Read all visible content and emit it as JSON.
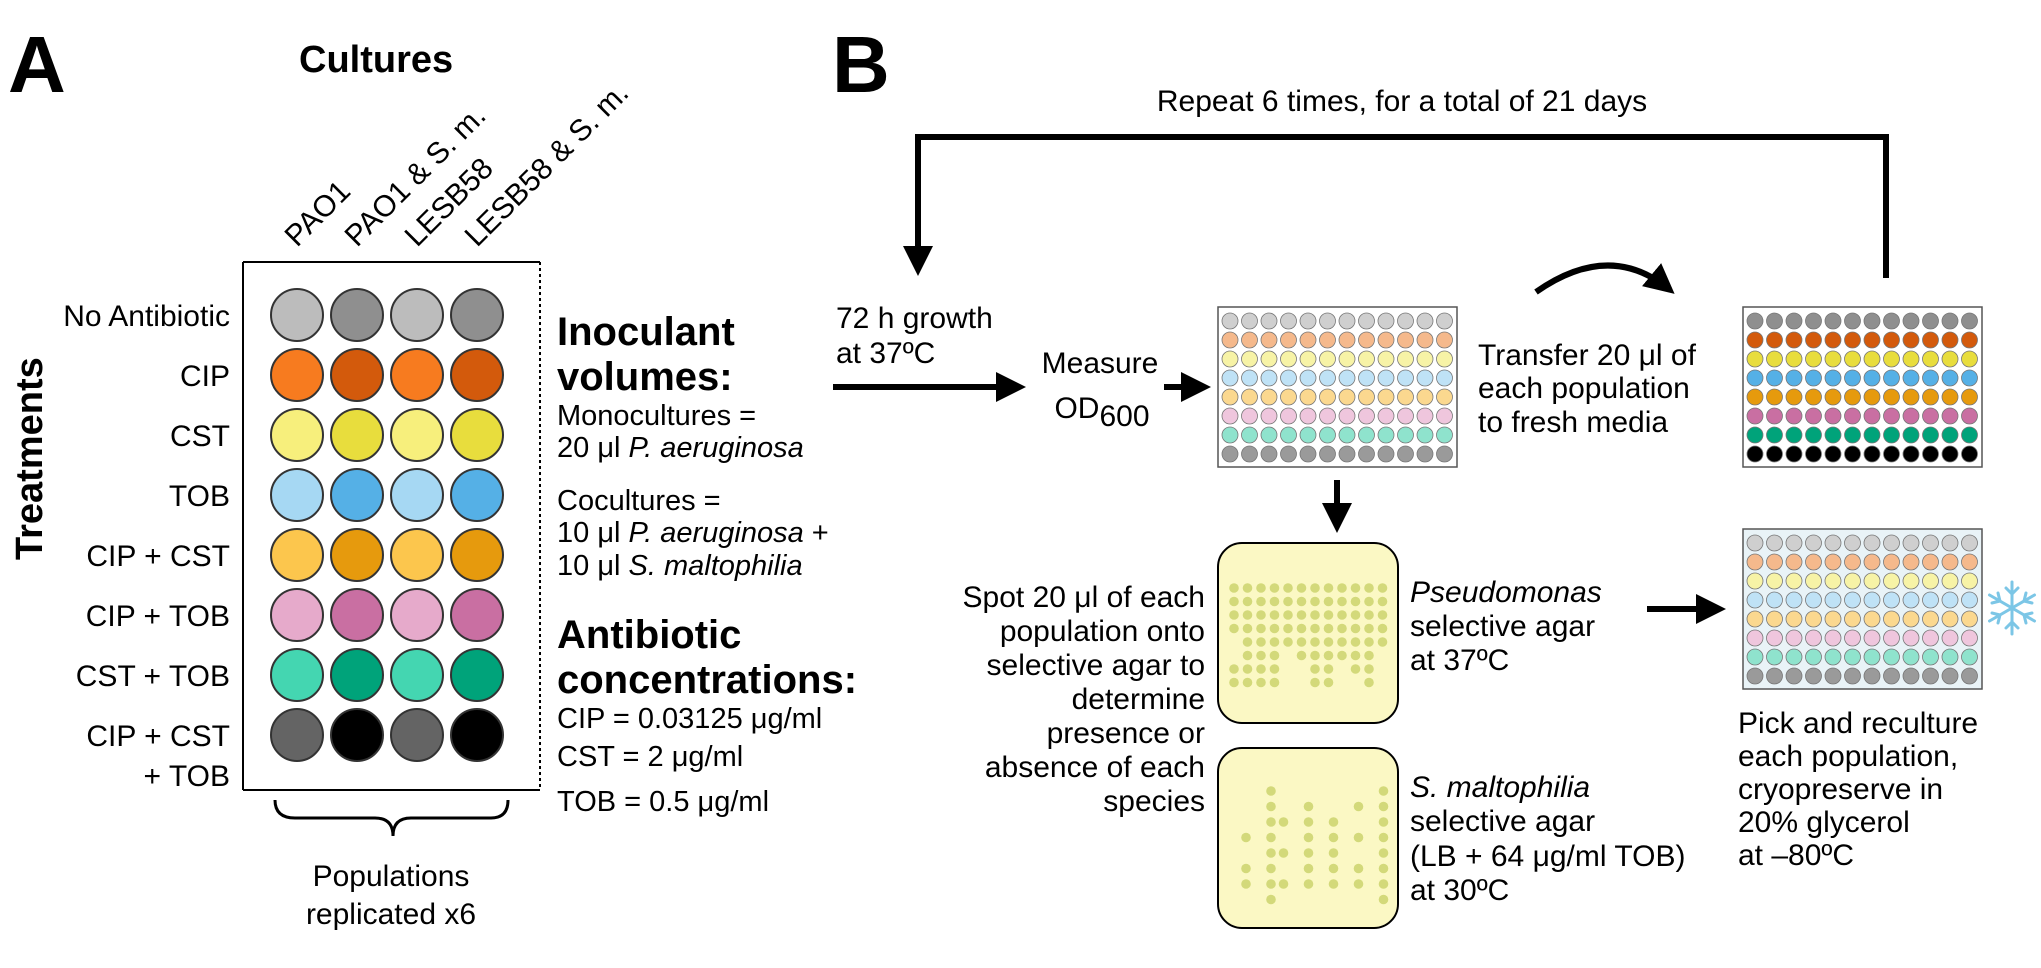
{
  "panel_a": {
    "letter": "A",
    "cultures_title": "Cultures",
    "treatments_title": "Treatments",
    "columns": [
      "PAO1",
      "PAO1 & S. m.",
      "LESB58",
      "LESB58 & S. m."
    ],
    "rows": [
      {
        "label": "No Antibiotic",
        "colors": [
          "#bcbcbc",
          "#8f8f8f",
          "#bcbcbc",
          "#8f8f8f"
        ]
      },
      {
        "label": "CIP",
        "colors": [
          "#f77b1f",
          "#d35a0c",
          "#f77b1f",
          "#d35a0c"
        ]
      },
      {
        "label": "CST",
        "colors": [
          "#f7ef7c",
          "#e8dd3d",
          "#f7ef7c",
          "#e8dd3d"
        ]
      },
      {
        "label": "TOB",
        "colors": [
          "#a6d8f3",
          "#55b0e6",
          "#a6d8f3",
          "#55b0e6"
        ]
      },
      {
        "label": "CIP + CST",
        "colors": [
          "#fcc64d",
          "#e69a0d",
          "#fcc64d",
          "#e69a0d"
        ]
      },
      {
        "label": "CIP + TOB",
        "colors": [
          "#e6aacb",
          "#c96fa2",
          "#e6aacb",
          "#c96fa2"
        ]
      },
      {
        "label": "CST + TOB",
        "colors": [
          "#44d6b1",
          "#00a37a",
          "#44d6b1",
          "#00a37a"
        ]
      },
      {
        "label_line1": "CIP + CST",
        "label_line2": "+ TOB",
        "colors": [
          "#646464",
          "#000000",
          "#646464",
          "#000000"
        ]
      }
    ],
    "populations_line1": "Populations",
    "populations_line2": "replicated x6"
  },
  "inoculant": {
    "title_line1": "Inoculant",
    "title_line2": "volumes:",
    "mono_line1": "Monocultures =",
    "mono_line2_num": "20 μl ",
    "mono_line2_species": "P. aeruginosa",
    "co_line1": "Cocultures =",
    "co_line2_num": "10 μl ",
    "co_line2_species": "P. aeruginosa",
    "co_line2_tail": " +",
    "co_line3_num": "10 μl ",
    "co_line3_species": "S. maltophilia"
  },
  "antibiotic": {
    "title_line1": "Antibiotic",
    "title_line2": "concentrations:",
    "lines": [
      "CIP = 0.03125 μg/ml",
      "CST = 2 μg/ml",
      "TOB = 0.5 μg/ml"
    ]
  },
  "panel_b": {
    "letter": "B",
    "repeat_text": "Repeat 6 times, for a total of 21 days",
    "growth_line1": "72 h growth",
    "growth_line2": "at 37ºC",
    "measure_line1": "Measure",
    "measure_od": "OD",
    "measure_sub": "600",
    "transfer_lines": [
      "Transfer 20 μl of",
      "each population",
      "to fresh media"
    ],
    "spot_lines": [
      "Spot 20 μl of each",
      "population onto",
      "selective agar to",
      "determine",
      "presence or",
      "absence of each",
      "species"
    ],
    "pseudo_name": "Pseudomonas",
    "pseudo_lines": [
      "selective agar",
      "at 37ºC"
    ],
    "steno_name": "S. maltophilia",
    "steno_lines": [
      "selective agar",
      "(LB + 64 μg/ml TOB)",
      "at 30ºC"
    ],
    "pick_lines": [
      "Pick and reculture",
      "each population,",
      "cryopreserve in",
      "20% glycerol",
      "at –80ºC"
    ],
    "snowflake_icon": "snowflake-icon",
    "plate_row_colors_light": [
      "#cfcfcf",
      "#f5b98c",
      "#f7f3a6",
      "#bfe2f6",
      "#fbd88f",
      "#efc6dd",
      "#8fe3cd",
      "#9a9a9a"
    ],
    "plate_row_colors_dark": [
      "#8f8f8f",
      "#d35a0c",
      "#e8dd3d",
      "#55b0e6",
      "#e69a0d",
      "#c96fa2",
      "#00a37a",
      "#000000"
    ],
    "agar_fill": "#fbf8c4",
    "agar_dot_color": "#d3d97a"
  }
}
